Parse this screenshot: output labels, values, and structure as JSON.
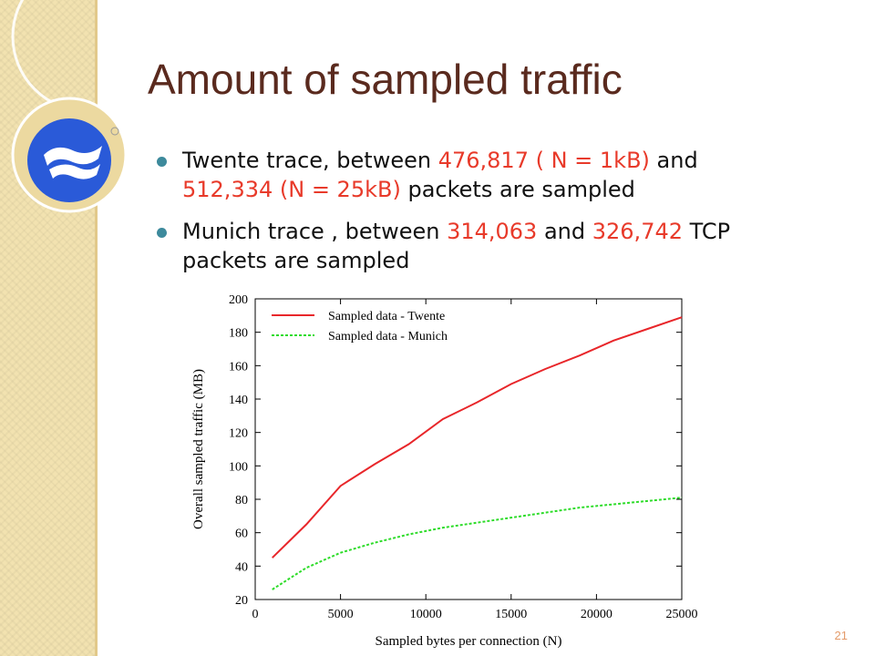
{
  "slide": {
    "title": "Amount of sampled traffic",
    "page_number": "21",
    "bullets": [
      {
        "parts": [
          {
            "text": "Twente trace, between ",
            "hl": false
          },
          {
            "text": "476,817 ( N = 1kB)",
            "hl": true
          },
          {
            "text": " and ",
            "hl": false
          },
          {
            "text": "512,334 (N = 25kB)",
            "hl": true
          },
          {
            "text": " packets are sampled",
            "hl": false
          }
        ]
      },
      {
        "parts": [
          {
            "text": "Munich trace , between ",
            "hl": false
          },
          {
            "text": "314,063",
            "hl": true
          },
          {
            "text": " and ",
            "hl": false
          },
          {
            "text": "326,742",
            "hl": true
          },
          {
            "text": " TCP packets are sampled",
            "hl": false
          }
        ]
      }
    ],
    "colors": {
      "title": "#5a2a1e",
      "highlight": "#e83a2a",
      "bullet": "#3d8a9c",
      "logo": "#2a5ad8"
    }
  },
  "chart_data": {
    "type": "line",
    "xlabel": "Sampled bytes per connection (N)",
    "ylabel": "Overall sampled traffic (MB)",
    "xlim": [
      0,
      25000
    ],
    "ylim": [
      20,
      200
    ],
    "xticks": [
      0,
      5000,
      10000,
      15000,
      20000,
      25000
    ],
    "yticks": [
      20,
      40,
      60,
      80,
      100,
      120,
      140,
      160,
      180,
      200
    ],
    "legend_position": "top-left",
    "grid": false,
    "series": [
      {
        "name": "Sampled data - Twente",
        "color": "#e8262a",
        "style": "solid",
        "x": [
          1000,
          3000,
          5000,
          7000,
          9000,
          11000,
          13000,
          15000,
          17000,
          19000,
          21000,
          23000,
          25000
        ],
        "y": [
          45,
          65,
          88,
          101,
          113,
          128,
          138,
          149,
          158,
          166,
          175,
          182,
          189
        ]
      },
      {
        "name": "Sampled data - Munich",
        "color": "#2edc2a",
        "style": "dashed",
        "x": [
          1000,
          3000,
          5000,
          7000,
          9000,
          11000,
          13000,
          15000,
          17000,
          19000,
          21000,
          23000,
          25000
        ],
        "y": [
          26,
          39,
          48,
          54,
          59,
          63,
          66,
          69,
          72,
          75,
          77,
          79,
          81
        ]
      }
    ]
  }
}
